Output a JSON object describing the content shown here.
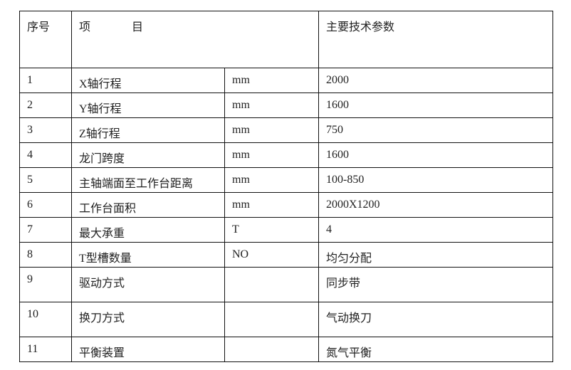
{
  "header": {
    "no": "序号",
    "item_a": "项",
    "item_b": "目",
    "param": "主要技术参数"
  },
  "rows": [
    {
      "no": "1",
      "item": "X轴行程",
      "unit": "mm",
      "value": "2000"
    },
    {
      "no": "2",
      "item": "Y轴行程",
      "unit": "mm",
      "value": "1600"
    },
    {
      "no": "3",
      "item": "Z轴行程",
      "unit": "mm",
      "value": "750"
    },
    {
      "no": "4",
      "item": "龙门跨度",
      "unit": "mm",
      "value": "1600"
    },
    {
      "no": "5",
      "item": "主轴端面至工作台距离",
      "unit": "mm",
      "value": "100-850"
    },
    {
      "no": "6",
      "item": "工作台面积",
      "unit": "mm",
      "value": "2000X1200"
    },
    {
      "no": "7",
      "item": "最大承重",
      "unit": "T",
      "value": "4"
    },
    {
      "no": "8",
      "item": "T型槽数量",
      "unit": "NO",
      "value": "均匀分配"
    },
    {
      "no": "9",
      "item": "驱动方式",
      "unit": "",
      "value": "同步带"
    },
    {
      "no": "10",
      "item": "换刀方式",
      "unit": "",
      "value": "气动换刀"
    },
    {
      "no": "11",
      "item": "平衡装置",
      "unit": "",
      "value": "氮气平衡"
    }
  ]
}
